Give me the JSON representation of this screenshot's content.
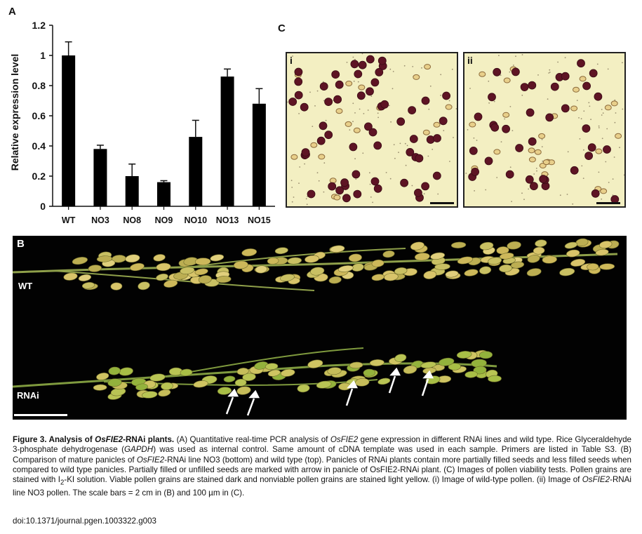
{
  "panels": {
    "a": "A",
    "b": "B",
    "c": "C"
  },
  "chart_data": {
    "type": "bar",
    "ylabel": "Relative expression level",
    "categories": [
      "WT",
      "NO3",
      "NO8",
      "NO9",
      "NO10",
      "NO13",
      "NO15"
    ],
    "values": [
      1.0,
      0.38,
      0.2,
      0.16,
      0.46,
      0.86,
      0.68
    ],
    "errors": [
      0.09,
      0.025,
      0.08,
      0.01,
      0.11,
      0.05,
      0.1
    ],
    "ylim": [
      0,
      1.2
    ],
    "yticks": [
      "0",
      "0.2",
      "0.4",
      "0.6",
      "0.8",
      "1",
      "1.2"
    ],
    "grid": false,
    "bar_color": "#000000"
  },
  "micrographs": {
    "i_label": "i",
    "ii_label": "ii"
  },
  "photo": {
    "wt_label": "WT",
    "rnai_label": "RNAi"
  },
  "caption": {
    "title_pre": "Figure 3. Analysis of ",
    "title_gene": "OsFIE2",
    "title_post": "-RNAi plants.",
    "s1": " (A) Quantitative real-time PCR analysis of ",
    "g1": "OsFIE2",
    "s2": " gene expression in different RNAi lines and wild type. Rice Glyceraldehyde 3-phosphate dehydrogenase (",
    "g2": "GAPDH",
    "s3": ") was used as internal control. Same amount of cDNA template was used in each sample. Primers are listed in Table S3. (B) Comparison of mature panicles of ",
    "g3": "OsFIE2",
    "s4": "-RNAi line NO3 (bottom) and wild type (top). Panicles of RNAi plants contain more partially filled seeds and less filled seeds when compared to wild type panicles. Partially filled or unfilled seeds are marked with arrow in panicle of OsFIE2-RNAi plant. (C) Images of pollen viability tests. Pollen grains are stained with I",
    "sub2": "2",
    "s5": "-KI solution. Viable pollen grains are stained dark and nonviable pollen grains are stained light yellow. (i) Image of wild-type pollen. (ii) Image of ",
    "g4": "OsFIE2",
    "s6": "-RNAi line NO3 pollen. The scale bars = 2 cm in (B) and 100 µm in (C)."
  },
  "doi": "doi:10.1371/journal.pgen.1003322.g003"
}
